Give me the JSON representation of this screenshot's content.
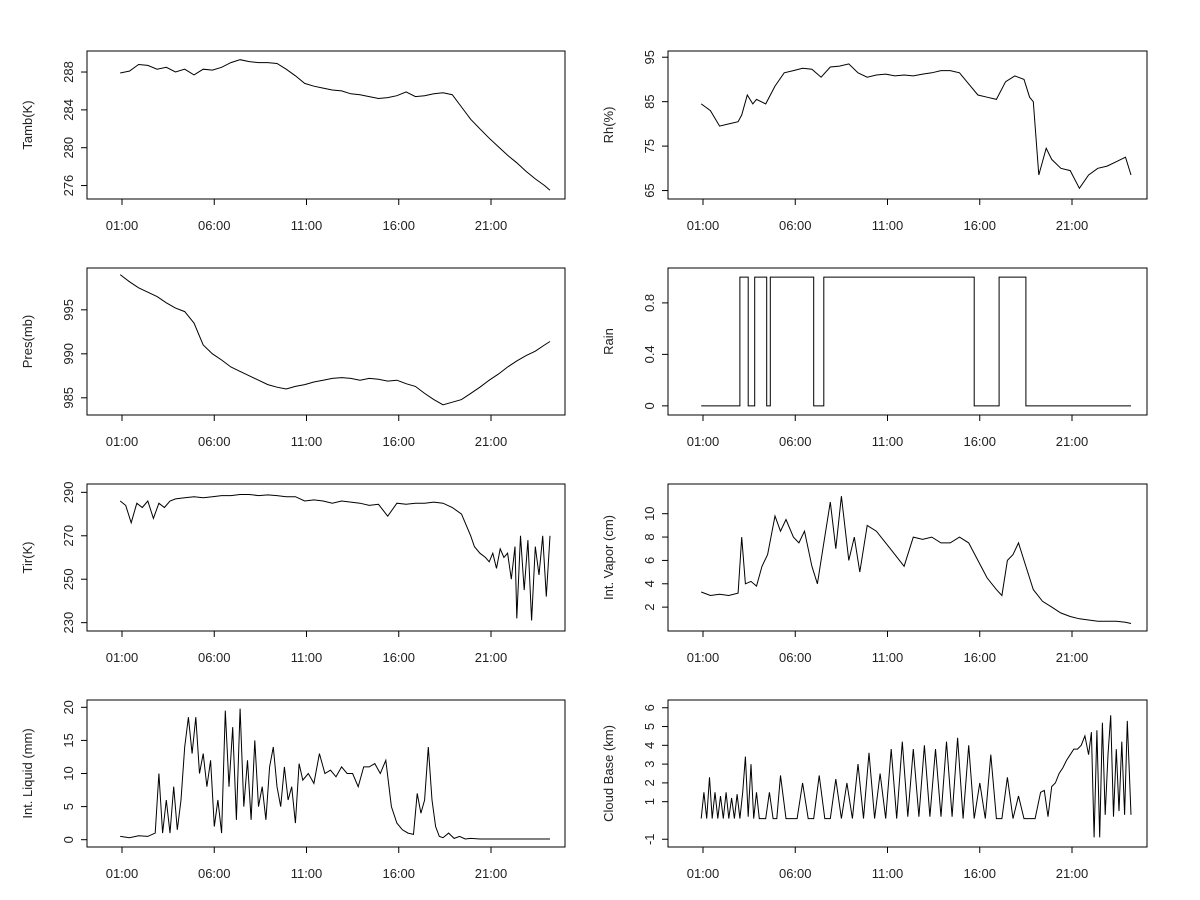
{
  "time_ticks": [
    "01:00",
    "06:00",
    "11:00",
    "16:00",
    "21:00"
  ],
  "chart_data": [
    {
      "type": "line",
      "ylabel": "Tamb(K)",
      "yticks": [
        276,
        280,
        284,
        288
      ],
      "ylim": [
        275,
        289.8
      ],
      "x": [
        0,
        0.5,
        1,
        1.5,
        2,
        2.5,
        3,
        3.5,
        4,
        4.5,
        5,
        5.5,
        6,
        6.5,
        7,
        7.5,
        8,
        8.5,
        9,
        9.5,
        10,
        10.5,
        11,
        11.5,
        12,
        12.5,
        13,
        13.5,
        14,
        14.5,
        15,
        15.5,
        16,
        16.5,
        17,
        17.5,
        18,
        18.5,
        19,
        19.5,
        20,
        20.5,
        21,
        21.5,
        22,
        22.5,
        23,
        23.3
      ],
      "values": [
        287.9,
        288.1,
        288.8,
        288.7,
        288.3,
        288.5,
        288.0,
        288.3,
        287.7,
        288.3,
        288.2,
        288.5,
        289.0,
        289.3,
        289.1,
        289.0,
        289.0,
        288.9,
        288.3,
        287.6,
        286.8,
        286.5,
        286.3,
        286.1,
        286.0,
        285.7,
        285.6,
        285.4,
        285.2,
        285.3,
        285.5,
        285.9,
        285.4,
        285.5,
        285.7,
        285.8,
        285.6,
        284.3,
        283.0,
        282.0,
        281.0,
        280.1,
        279.2,
        278.4,
        277.5,
        276.7,
        276.0,
        275.5
      ]
    },
    {
      "type": "line",
      "ylabel": "Rh(%)",
      "yticks": [
        65,
        75,
        85,
        95
      ],
      "ylim": [
        64,
        95.5
      ],
      "x": [
        0,
        0.5,
        1,
        1.5,
        2,
        2.2,
        2.5,
        2.8,
        3,
        3.5,
        4,
        4.5,
        5,
        5.5,
        6,
        6.5,
        7,
        7.5,
        8,
        8.5,
        9,
        9.5,
        10,
        10.5,
        11,
        11.5,
        12,
        12.5,
        13,
        13.5,
        14,
        14.5,
        15,
        15.5,
        16,
        16.5,
        17,
        17.5,
        17.8,
        18,
        18.3,
        18.7,
        19,
        19.5,
        20,
        20.5,
        21,
        21.5,
        22,
        22.5,
        23,
        23.3
      ],
      "values": [
        84.5,
        83.0,
        79.5,
        80.0,
        80.5,
        82.0,
        86.5,
        84.5,
        85.5,
        84.5,
        88.5,
        91.5,
        92.0,
        92.5,
        92.3,
        90.5,
        92.8,
        93.0,
        93.5,
        91.5,
        90.5,
        91.0,
        91.2,
        90.8,
        91.0,
        90.8,
        91.2,
        91.5,
        92.0,
        92.0,
        91.5,
        89.0,
        86.5,
        86.0,
        85.5,
        89.5,
        90.8,
        90.0,
        86.0,
        85.0,
        68.5,
        74.5,
        72.0,
        70.0,
        69.5,
        65.5,
        68.5,
        70.0,
        70.5,
        71.5,
        72.5,
        68.5
      ]
    },
    {
      "type": "line",
      "ylabel": "Pres(mb)",
      "yticks": [
        985,
        990,
        995
      ],
      "ylim": [
        983.5,
        999.3
      ],
      "x": [
        0,
        0.5,
        1,
        1.5,
        2,
        2.5,
        3,
        3.5,
        4,
        4.5,
        5,
        5.5,
        6,
        6.5,
        7,
        7.5,
        8,
        8.5,
        9,
        9.5,
        10,
        10.5,
        11,
        11.5,
        12,
        12.5,
        13,
        13.5,
        14,
        14.5,
        15,
        15.5,
        16,
        16.5,
        17,
        17.5,
        18,
        18.5,
        19,
        19.5,
        20,
        20.5,
        21,
        21.5,
        22,
        22.5,
        23,
        23.3
      ],
      "values": [
        999.0,
        998.2,
        997.5,
        997.0,
        996.5,
        995.8,
        995.2,
        994.8,
        993.5,
        991.0,
        990.0,
        989.3,
        988.5,
        988.0,
        987.5,
        987.0,
        986.5,
        986.2,
        986.0,
        986.3,
        986.5,
        986.8,
        987.0,
        987.2,
        987.3,
        987.2,
        987.0,
        987.2,
        987.1,
        986.9,
        987.0,
        986.6,
        986.3,
        985.5,
        984.8,
        984.2,
        984.5,
        984.8,
        985.5,
        986.2,
        987.0,
        987.7,
        988.5,
        989.2,
        989.8,
        990.3,
        991.0,
        991.4
      ]
    },
    {
      "type": "line",
      "ylabel": "Rain",
      "yticks": [
        0.0,
        0.4,
        0.8
      ],
      "ylim": [
        -0.04,
        1.04
      ],
      "x": [
        0,
        2.1,
        2.1,
        2.55,
        2.55,
        2.9,
        2.9,
        3.55,
        3.55,
        3.75,
        3.75,
        6.1,
        6.1,
        6.65,
        6.65,
        14.8,
        14.8,
        16.15,
        16.15,
        17.6,
        17.6,
        23.3
      ],
      "values": [
        0,
        0,
        1,
        1,
        0,
        0,
        1,
        1,
        0,
        0,
        1,
        1,
        0,
        0,
        1,
        1,
        0,
        0,
        1,
        1,
        0,
        0
      ]
    },
    {
      "type": "line",
      "ylabel": "Tir(K)",
      "yticks": [
        230,
        250,
        270,
        290
      ],
      "ylim": [
        228,
        292
      ],
      "x": [
        0,
        0.3,
        0.6,
        0.9,
        1.2,
        1.5,
        1.8,
        2.1,
        2.4,
        2.7,
        3.0,
        3.5,
        4,
        4.5,
        5,
        5.5,
        6,
        6.5,
        7,
        7.5,
        8,
        8.5,
        9,
        9.5,
        10,
        10.5,
        11,
        11.5,
        12,
        12.5,
        13,
        13.5,
        14,
        14.5,
        15,
        15.5,
        16,
        16.5,
        17,
        17.5,
        18,
        18.5,
        19,
        19.2,
        19.5,
        19.8,
        20,
        20.2,
        20.4,
        20.6,
        20.8,
        21,
        21.2,
        21.4,
        21.5,
        21.7,
        21.9,
        22.1,
        22.3,
        22.5,
        22.7,
        22.9,
        23.1,
        23.3
      ],
      "values": [
        286,
        284,
        276,
        285,
        283,
        286,
        278,
        285,
        283,
        286,
        287,
        287.5,
        288,
        287.5,
        288,
        288.5,
        288.5,
        289,
        289,
        288.5,
        288.8,
        288.5,
        288,
        288,
        286,
        286.5,
        286,
        285,
        286,
        285.5,
        285,
        284,
        284.5,
        279,
        285,
        284.5,
        285,
        285,
        285.5,
        285,
        283,
        280,
        270,
        265,
        262,
        260,
        258,
        262,
        255,
        264,
        260,
        262,
        250,
        265,
        232,
        270,
        245,
        268,
        231,
        265,
        252,
        270,
        242,
        270
      ]
    },
    {
      "type": "line",
      "ylabel": "Int. Vapor (cm)",
      "yticks": [
        2,
        4,
        6,
        8,
        10
      ],
      "ylim": [
        0.3,
        12.2
      ],
      "x": [
        0,
        0.5,
        1,
        1.5,
        2,
        2.2,
        2.4,
        2.7,
        3,
        3.3,
        3.6,
        4,
        4.3,
        4.6,
        5,
        5.3,
        5.6,
        6,
        6.3,
        6.6,
        7,
        7.3,
        7.6,
        8,
        8.3,
        8.6,
        9,
        9.5,
        10,
        10.5,
        11,
        11.5,
        12,
        12.5,
        13,
        13.5,
        14,
        14.5,
        15,
        15.5,
        16,
        16.3,
        16.6,
        16.9,
        17.2,
        17.5,
        18,
        18.5,
        19,
        19.5,
        20,
        20.5,
        21,
        21.5,
        22,
        22.5,
        23,
        23.3
      ],
      "values": [
        3.3,
        3.0,
        3.1,
        3.0,
        3.2,
        8.0,
        4.0,
        4.2,
        3.8,
        5.5,
        6.5,
        9.8,
        8.5,
        9.5,
        8.0,
        7.5,
        8.5,
        5.5,
        4.0,
        7.0,
        11.0,
        7.0,
        11.5,
        6.0,
        8.0,
        5.0,
        9.0,
        8.5,
        7.5,
        6.5,
        5.5,
        8.0,
        7.8,
        8.0,
        7.5,
        7.5,
        8.0,
        7.5,
        6.0,
        4.5,
        3.5,
        3.0,
        6.0,
        6.5,
        7.5,
        6.0,
        3.5,
        2.5,
        2.0,
        1.5,
        1.2,
        1.0,
        0.9,
        0.8,
        0.8,
        0.8,
        0.7,
        0.6
      ]
    },
    {
      "type": "line",
      "ylabel": "Int. Liquid (mm)",
      "yticks": [
        0,
        5,
        10,
        15,
        20
      ],
      "ylim": [
        -0.5,
        20.5
      ],
      "x": [
        0,
        0.5,
        1,
        1.5,
        1.9,
        2.1,
        2.3,
        2.5,
        2.7,
        2.9,
        3.1,
        3.3,
        3.5,
        3.7,
        3.9,
        4.1,
        4.3,
        4.5,
        4.7,
        4.9,
        5.1,
        5.3,
        5.5,
        5.7,
        5.9,
        6.1,
        6.3,
        6.5,
        6.7,
        6.9,
        7.1,
        7.3,
        7.5,
        7.7,
        7.9,
        8.1,
        8.3,
        8.5,
        8.7,
        8.9,
        9.1,
        9.3,
        9.5,
        9.7,
        9.9,
        10.2,
        10.5,
        10.8,
        11.1,
        11.4,
        11.7,
        12.0,
        12.3,
        12.6,
        12.9,
        13.2,
        13.5,
        13.8,
        14.1,
        14.4,
        14.7,
        15.0,
        15.3,
        15.6,
        15.9,
        16.1,
        16.3,
        16.5,
        16.7,
        16.9,
        17.1,
        17.3,
        17.5,
        17.8,
        18.1,
        18.4,
        18.7,
        19.0,
        19.5,
        20,
        21,
        22,
        23,
        23.3
      ],
      "values": [
        0.5,
        0.3,
        0.6,
        0.5,
        1.0,
        10.0,
        1.0,
        6.0,
        1.0,
        8.0,
        1.5,
        6.0,
        14.0,
        18.5,
        13.0,
        18.5,
        10.0,
        13.0,
        8.0,
        12.0,
        2.0,
        6.0,
        1.0,
        19.5,
        8.0,
        17.0,
        3.0,
        19.8,
        5.0,
        12.0,
        3.0,
        15.0,
        5.0,
        8.0,
        3.0,
        11.0,
        14.0,
        8.0,
        5.0,
        11.0,
        6.0,
        8.0,
        2.5,
        11.5,
        9.0,
        10.0,
        8.5,
        13.0,
        10.0,
        10.5,
        9.5,
        11.0,
        10.0,
        10.0,
        8.0,
        11.0,
        11.0,
        11.5,
        10.0,
        12.0,
        5.0,
        2.5,
        1.5,
        1.0,
        0.8,
        7.0,
        4.0,
        6.0,
        14.0,
        6.0,
        2.0,
        0.5,
        0.3,
        1.0,
        0.2,
        0.5,
        0.1,
        0.2,
        0.1,
        0.1,
        0.1,
        0.1,
        0.1,
        0.1
      ]
    },
    {
      "type": "line",
      "ylabel": "Cloud Base (km)",
      "yticks": [
        -1,
        1,
        2,
        3,
        4,
        5,
        6
      ],
      "ylim": [
        -1.2,
        6.2
      ],
      "x": [
        0,
        0.15,
        0.3,
        0.45,
        0.6,
        0.75,
        0.9,
        1.05,
        1.2,
        1.35,
        1.5,
        1.65,
        1.8,
        1.95,
        2.1,
        2.25,
        2.4,
        2.55,
        2.7,
        2.85,
        3.0,
        3.15,
        3.3,
        3.5,
        3.7,
        3.9,
        4.1,
        4.3,
        4.6,
        4.9,
        5.2,
        5.5,
        5.8,
        6.1,
        6.4,
        6.7,
        7.0,
        7.3,
        7.6,
        7.9,
        8.2,
        8.5,
        8.8,
        9.1,
        9.4,
        9.7,
        10.0,
        10.3,
        10.6,
        10.9,
        11.2,
        11.5,
        11.8,
        12.1,
        12.4,
        12.7,
        13.0,
        13.3,
        13.6,
        13.9,
        14.2,
        14.5,
        14.8,
        15.1,
        15.4,
        15.7,
        16.0,
        16.3,
        16.6,
        16.9,
        17.2,
        17.5,
        17.8,
        18.1,
        18.4,
        18.6,
        18.8,
        19.0,
        19.2,
        19.4,
        19.6,
        19.8,
        20.0,
        20.2,
        20.4,
        20.6,
        20.8,
        21.0,
        21.15,
        21.3,
        21.45,
        21.6,
        21.75,
        21.9,
        22.05,
        22.2,
        22.35,
        22.5,
        22.65,
        22.8,
        22.95,
        23.1,
        23.3
      ],
      "values": [
        0.1,
        1.5,
        0.1,
        2.3,
        0.1,
        1.5,
        0.1,
        1.3,
        0.1,
        1.5,
        0.1,
        1.2,
        0.1,
        1.4,
        0.1,
        1.5,
        3.4,
        0.2,
        3.0,
        0.1,
        1.5,
        0.1,
        0.1,
        0.1,
        1.5,
        0.1,
        0.1,
        2.4,
        0.1,
        0.1,
        0.1,
        2.0,
        0.1,
        0.1,
        2.4,
        0.1,
        0.1,
        2.2,
        0.1,
        2.0,
        0.1,
        3.0,
        0.1,
        3.6,
        0.1,
        2.5,
        0.1,
        3.8,
        0.1,
        4.2,
        0.2,
        3.8,
        0.2,
        4.0,
        0.2,
        3.8,
        0.2,
        4.2,
        0.2,
        4.4,
        0.1,
        4.0,
        0.1,
        2.0,
        0.1,
        3.5,
        0.1,
        0.1,
        2.3,
        0.1,
        1.3,
        0.1,
        0.1,
        0.1,
        1.5,
        1.6,
        0.2,
        1.8,
        2.0,
        2.5,
        2.8,
        3.2,
        3.5,
        3.8,
        3.8,
        4.0,
        4.5,
        3.5,
        4.7,
        -0.9,
        4.8,
        -0.9,
        5.2,
        0.3,
        3.5,
        5.6,
        0.2,
        3.8,
        0.5,
        4.2,
        0.3,
        5.3,
        0.3
      ]
    }
  ]
}
